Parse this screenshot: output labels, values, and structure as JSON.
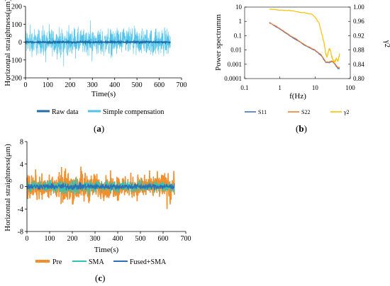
{
  "chart_data": [
    {
      "type": "line",
      "panel": "a",
      "ylabel": "Horizontal straightness(μm)",
      "xlabel": "Time(s)",
      "xlim": [
        0,
        700
      ],
      "ylim": [
        -200,
        200
      ],
      "x_ticks": [
        0,
        100,
        200,
        300,
        400,
        500,
        600,
        700
      ],
      "y_ticks": [
        -200,
        -100,
        0,
        100,
        200
      ],
      "grid": false,
      "legend": "bottom",
      "x_range_data": [
        0,
        650
      ],
      "series": [
        {
          "name": "Raw data",
          "color": "#1f6fa8",
          "amplitude": 6
        },
        {
          "name": "Simple compensation",
          "color": "#4fc3ea",
          "amplitude": 110
        }
      ]
    },
    {
      "type": "line",
      "panel": "b",
      "ylabel": "Power spectrumm",
      "y2label": "γ2",
      "xlabel": "f(Hz)",
      "xscale": "log",
      "yscale": "log",
      "xlim": [
        0.1,
        100
      ],
      "ylim": [
        0.0001,
        10
      ],
      "y2lim": [
        0.8,
        1.0
      ],
      "x_ticks": [
        0.1,
        1,
        10,
        100
      ],
      "x_tick_labels": [
        "0.1",
        "1",
        "10",
        "100"
      ],
      "y_ticks": [
        0.0001,
        0.001,
        0.01,
        0.1,
        1,
        10
      ],
      "y_tick_labels": [
        "0.0001",
        "0.001",
        "0.01",
        "0.1",
        "1",
        "10"
      ],
      "y2_ticks": [
        0.8,
        0.84,
        0.88,
        0.92,
        0.96,
        1.0
      ],
      "y2_tick_labels": [
        "0.80",
        "0.84",
        "0.88",
        "0.92",
        "0.96",
        "1.00"
      ],
      "legend": "bottom",
      "series": [
        {
          "name": "S11",
          "color": "#4472c4",
          "axis": "left",
          "x": [
            0.5,
            1,
            2,
            3,
            5,
            8,
            10,
            15,
            20,
            25,
            30,
            35,
            40,
            45,
            50
          ],
          "y": [
            0.8,
            0.3,
            0.09,
            0.05,
            0.022,
            0.012,
            0.009,
            0.004,
            0.0014,
            0.0013,
            0.0016,
            0.0012,
            0.0007,
            0.0005,
            0.0005
          ]
        },
        {
          "name": "S22",
          "color": "#ed7d31",
          "axis": "left",
          "x": [
            0.5,
            1,
            2,
            3,
            5,
            8,
            10,
            15,
            20,
            25,
            30,
            35,
            40,
            45,
            50
          ],
          "y": [
            0.85,
            0.32,
            0.1,
            0.055,
            0.024,
            0.013,
            0.01,
            0.0045,
            0.0015,
            0.0014,
            0.0017,
            0.0013,
            0.0008,
            0.0006,
            0.0006
          ]
        },
        {
          "name": "γ2",
          "color": "#ffc000",
          "axis": "right",
          "x": [
            0.5,
            1,
            2,
            3,
            5,
            8,
            10,
            13,
            15,
            18,
            20,
            22,
            25,
            28,
            30,
            33,
            35,
            40,
            45,
            50
          ],
          "y": [
            0.994,
            0.992,
            0.99,
            0.987,
            0.984,
            0.98,
            0.972,
            0.955,
            0.93,
            0.9,
            0.87,
            0.86,
            0.885,
            0.875,
            0.86,
            0.85,
            0.845,
            0.855,
            0.85,
            0.87
          ]
        }
      ]
    },
    {
      "type": "line",
      "panel": "c",
      "ylabel": "Horizontal straightness(μm)",
      "xlabel": "Time(s)",
      "xlim": [
        0,
        700
      ],
      "ylim": [
        -8,
        8
      ],
      "x_ticks": [
        0,
        100,
        200,
        300,
        400,
        500,
        600,
        700
      ],
      "y_ticks": [
        -8,
        -4,
        0,
        4,
        8
      ],
      "grid": false,
      "legend": "bottom",
      "x_range_data": [
        0,
        650
      ],
      "series": [
        {
          "name": "Pre",
          "color": "#f28e2b",
          "amplitude": 3.2
        },
        {
          "name": "SMA",
          "color": "#2ec4b6",
          "amplitude": 1.6
        },
        {
          "name": "Fused+SMA",
          "color": "#2f6db5",
          "amplitude": 0.8
        }
      ]
    }
  ],
  "labels": {
    "a": "(a)",
    "b": "(b)",
    "c": "(c)"
  }
}
